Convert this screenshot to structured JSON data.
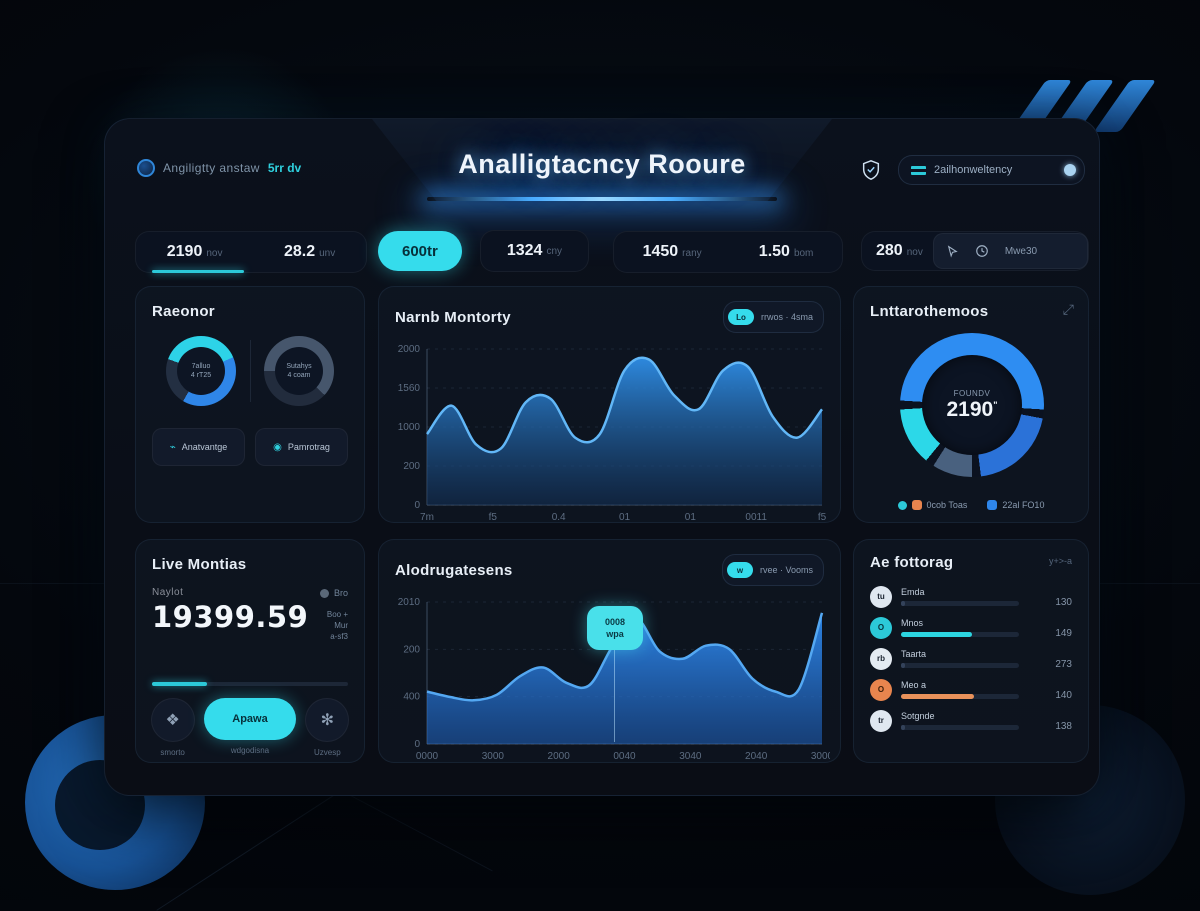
{
  "header": {
    "logo_text": "Angiligtty anstaw",
    "logo_accent": "5rr dv",
    "title": "Analligtacncy Rooure",
    "user_pill_text": "2ailhonweltency"
  },
  "stats": {
    "g1": {
      "value": "2190",
      "unit": "nov",
      "value2": "28.2",
      "unit2": "unv"
    },
    "g2": {
      "button_label": "600tr",
      "value": "1324",
      "unit": "cny"
    },
    "g3": {
      "value": "1450",
      "unit": "rany",
      "value2": "1.50",
      "unit2": "bom"
    },
    "g4": {
      "value": "280",
      "unit": "nov",
      "control_label": "Mwe30"
    }
  },
  "panels": {
    "reactor": {
      "title": "Raeonor",
      "gauges": [
        {
          "line1": "7alluo",
          "line2": "4 rT25",
          "from": "-70deg",
          "segments": [
            {
              "color": "#2dd3e8",
              "pct": 38
            },
            {
              "color": "#2f86e8",
              "pct": 40
            },
            {
              "color": "#232f42",
              "pct": 22
            }
          ]
        },
        {
          "line1": "Sutahys",
          "line2": "4 coam",
          "from": "-90deg",
          "segments": [
            {
              "color": "#46566c",
              "pct": 62
            },
            {
              "color": "#222c3d",
              "pct": 38
            }
          ]
        }
      ],
      "buttons": [
        {
          "label": "Anatvantge"
        },
        {
          "label": "Pamrotrag"
        }
      ]
    },
    "monitor": {
      "title": "Narnb Montorty",
      "badge_tag": "Lo",
      "badge_text": "rrwos · 4sma"
    },
    "interference": {
      "title": "Lnttarothemoos",
      "center_label": "FOUNDV",
      "center_value": "2190",
      "legend": [
        {
          "swatches": [
            "#2cc9d8",
            "#e8854e"
          ],
          "label": "0cob Toas"
        },
        {
          "swatches": [
            "#2e86ea"
          ],
          "label": "22al FO10"
        }
      ]
    },
    "live": {
      "title": "Live Montias",
      "metric_label": "Naylot",
      "metric_value": "19399.59",
      "side_dot_label": "Bro",
      "side_lines": [
        "Boo +",
        "Mur",
        "a-sf3"
      ],
      "progress_percent": 28,
      "actions": [
        {
          "glyph": "❖",
          "caption": "smorto"
        },
        {
          "label": "Apawa",
          "caption": "wdgodisna"
        },
        {
          "glyph": "✻",
          "caption": "Uzvesp"
        }
      ]
    },
    "addresses": {
      "title": "Alodrugatesens",
      "badge_tag": "w",
      "badge_text": "rvee · Vooms",
      "tooltip_line1": "0008",
      "tooltip_line2": "wpa"
    },
    "ranking": {
      "title": "Ae fottorag",
      "corner_note": "y+>-a",
      "rows": [
        {
          "initials": "tu",
          "avatar_bg": "#dfe7f0",
          "avatar_fg": "#1a2330",
          "label": "Emda",
          "value": "130",
          "fill_percent": 3,
          "fill_color": "#33425a"
        },
        {
          "initials": "O",
          "avatar_bg": "#2cc9d8",
          "avatar_fg": "#06323a",
          "label": "Mnos",
          "value": "149",
          "fill_percent": 60,
          "fill_color": "#2cd5e0"
        },
        {
          "initials": "rb",
          "avatar_bg": "#e4ebf2",
          "avatar_fg": "#1a2330",
          "label": "Taarta",
          "value": "273",
          "fill_percent": 3,
          "fill_color": "#33425a"
        },
        {
          "initials": "O",
          "avatar_bg": "#e8854e",
          "avatar_fg": "#3a1d08",
          "label": "Meo a",
          "value": "140",
          "fill_percent": 62,
          "fill_color": "#e8915a"
        },
        {
          "initials": "tr",
          "avatar_bg": "#dfe7f0",
          "avatar_fg": "#1a2330",
          "label": "Sotgnde",
          "value": "138",
          "fill_percent": 3,
          "fill_color": "#33425a"
        }
      ]
    }
  },
  "chart_data": [
    {
      "id": "chart-monitor",
      "type": "area",
      "title": "Narnb Montorty",
      "x": [
        "7m",
        "f5",
        "0.4",
        "01",
        "01",
        "0011",
        "f5"
      ],
      "yticks": [
        "2000",
        "1560",
        "1000",
        "200",
        "0"
      ],
      "values": [
        1000,
        1400,
        850,
        800,
        1450,
        1500,
        950,
        1000,
        1900,
        2050,
        1550,
        1350,
        1900,
        1950,
        1250,
        950,
        1350
      ],
      "ylim": [
        0,
        2200
      ],
      "grid": true,
      "legend_position": "none",
      "stroke": "#62b7f7",
      "fill_top": "#2f8fe8",
      "fill_bottom": "#133158"
    },
    {
      "id": "chart-addresses",
      "type": "area",
      "title": "Alodrugatesens",
      "x": [
        "0000",
        "3000",
        "2000",
        "0040",
        "3040",
        "2040",
        "3000"
      ],
      "yticks": [
        "2010",
        "200",
        "400",
        "0"
      ],
      "values": [
        480,
        430,
        400,
        450,
        620,
        700,
        560,
        540,
        900,
        1150,
        850,
        780,
        900,
        870,
        600,
        480,
        500,
        1200
      ],
      "ylim": [
        0,
        1300
      ],
      "grid": true,
      "legend_position": "none",
      "stroke": "#54a8f2",
      "fill_top": "#2f8bf0",
      "fill_bottom": "#1f63c0"
    },
    {
      "id": "donut-interference",
      "type": "donut",
      "title": "Lnttarothemoos",
      "center_value": "2190",
      "segments": [
        {
          "name": "bright-blue",
          "value": 50,
          "color": "#2e8df2"
        },
        {
          "name": "mid-blue",
          "value": 20,
          "color": "#2b72d8"
        },
        {
          "name": "slate",
          "value": 9,
          "color": "#49617f"
        },
        {
          "name": "cyan",
          "value": 13,
          "color": "#2cd8e8"
        }
      ],
      "gap_color": "#0b1220"
    }
  ],
  "colors": {
    "accent_cyan": "#35dcec",
    "accent_blue": "#2e8df2",
    "accent_orange": "#e8854e",
    "panel_bg": "#111927"
  }
}
